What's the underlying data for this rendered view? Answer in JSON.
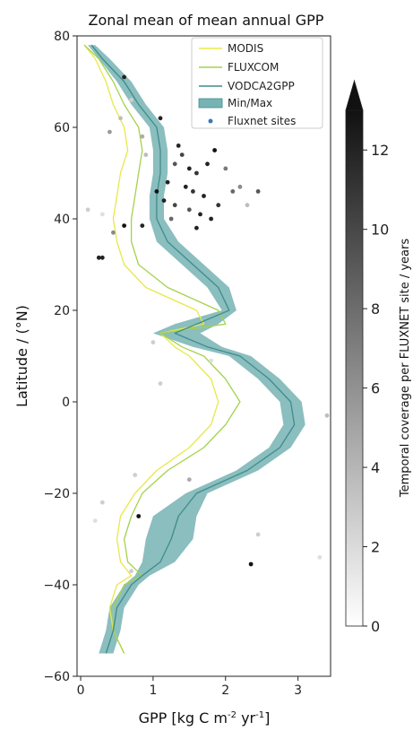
{
  "chart_data": {
    "type": "line",
    "title": "Zonal mean of mean annual GPP",
    "xlabel": "GPP [kg C m",
    "xlabel_sup1": "-2",
    "xlabel_mid": " yr",
    "xlabel_sup2": "-1",
    "xlabel_end": "]",
    "ylabel": "Latitude / (°N)",
    "xlim": [
      -0.05,
      3.45
    ],
    "ylim": [
      -60,
      80
    ],
    "xticks": [
      "0",
      "1",
      "2",
      "3"
    ],
    "yticks": [
      "80",
      "60",
      "40",
      "20",
      "0",
      "−20",
      "−40",
      "−60"
    ],
    "legend_position": "top-right",
    "legend": [
      "MODIS",
      "FLUXCOM",
      "VODCA2GPP",
      "Min/Max",
      "Fluxnet sites"
    ],
    "colors": {
      "modis": "#e8e84a",
      "fluxcom": "#a4d24e",
      "vodca": "#3f8c8c",
      "minmax_fill": "#77b3b3",
      "fluxnet_dot": "#3a79b8"
    },
    "series": [
      {
        "name": "MODIS",
        "lat": [
          78,
          75,
          70,
          65,
          60,
          55,
          50,
          45,
          40,
          35,
          30,
          25,
          20,
          17,
          15,
          12,
          10,
          5,
          0,
          -5,
          -10,
          -15,
          -20,
          -25,
          -30,
          -35,
          -38,
          -40,
          -45,
          -50,
          -55
        ],
        "gpp": [
          0.05,
          0.2,
          0.35,
          0.45,
          0.6,
          0.65,
          0.55,
          0.5,
          0.45,
          0.5,
          0.6,
          0.9,
          1.6,
          1.7,
          1.1,
          1.3,
          1.5,
          1.8,
          1.9,
          1.8,
          1.5,
          1.05,
          0.75,
          0.55,
          0.5,
          0.55,
          0.7,
          0.5,
          0.4,
          0.45,
          0.6
        ]
      },
      {
        "name": "FLUXCOM",
        "lat": [
          78,
          75,
          70,
          65,
          60,
          55,
          50,
          45,
          40,
          35,
          30,
          25,
          20,
          17,
          15,
          12,
          10,
          5,
          0,
          -5,
          -10,
          -15,
          -20,
          -25,
          -30,
          -35,
          -38,
          -40,
          -45,
          -50,
          -55
        ],
        "gpp": [
          0.05,
          0.25,
          0.45,
          0.6,
          0.8,
          0.85,
          0.8,
          0.75,
          0.7,
          0.7,
          0.8,
          1.2,
          1.9,
          2.0,
          1.1,
          1.4,
          1.7,
          2.0,
          2.2,
          2.0,
          1.7,
          1.2,
          0.85,
          0.7,
          0.6,
          0.65,
          0.85,
          0.6,
          0.45,
          0.45,
          0.6
        ]
      },
      {
        "name": "VODCA2GPP",
        "lat": [
          78,
          75,
          70,
          65,
          60,
          55,
          50,
          45,
          40,
          35,
          30,
          25,
          20,
          17,
          15,
          12,
          10,
          5,
          0,
          -5,
          -10,
          -15,
          -20,
          -25,
          -30,
          -35,
          -38,
          -40,
          -45,
          -50,
          -55
        ],
        "gpp": [
          0.15,
          0.3,
          0.6,
          0.8,
          1.05,
          1.1,
          1.1,
          1.05,
          1.05,
          1.2,
          1.55,
          1.9,
          2.05,
          1.6,
          1.3,
          1.75,
          2.2,
          2.6,
          2.9,
          2.95,
          2.75,
          2.3,
          1.6,
          1.35,
          1.25,
          1.1,
          0.85,
          0.7,
          0.5,
          0.45,
          0.35
        ]
      }
    ],
    "minmax": {
      "lat": [
        78,
        75,
        70,
        65,
        60,
        55,
        50,
        45,
        40,
        35,
        30,
        25,
        20,
        17,
        15,
        12,
        10,
        5,
        0,
        -5,
        -10,
        -15,
        -20,
        -25,
        -30,
        -35,
        -38,
        -40,
        -45,
        -50,
        -55
      ],
      "min": [
        0.1,
        0.25,
        0.5,
        0.7,
        0.95,
        1.0,
        1.0,
        0.95,
        0.95,
        1.05,
        1.4,
        1.75,
        1.95,
        1.3,
        1.0,
        1.55,
        2.05,
        2.45,
        2.75,
        2.8,
        2.6,
        2.15,
        1.45,
        1.0,
        0.9,
        0.85,
        0.75,
        0.6,
        0.4,
        0.35,
        0.25
      ],
      "max": [
        0.2,
        0.4,
        0.7,
        0.9,
        1.15,
        1.2,
        1.2,
        1.15,
        1.15,
        1.35,
        1.7,
        2.05,
        2.15,
        1.9,
        1.65,
        1.95,
        2.35,
        2.75,
        3.05,
        3.1,
        2.9,
        2.45,
        1.75,
        1.6,
        1.55,
        1.3,
        0.95,
        0.8,
        0.6,
        0.55,
        0.45
      ]
    },
    "fluxnet_sites": [
      {
        "gpp": 1.1,
        "lat": 62,
        "coverage": 12
      },
      {
        "gpp": 1.35,
        "lat": 56,
        "coverage": 12
      },
      {
        "gpp": 1.4,
        "lat": 54,
        "coverage": 10
      },
      {
        "gpp": 1.3,
        "lat": 52,
        "coverage": 9
      },
      {
        "gpp": 1.5,
        "lat": 51,
        "coverage": 12
      },
      {
        "gpp": 1.6,
        "lat": 50,
        "coverage": 11
      },
      {
        "gpp": 1.75,
        "lat": 52,
        "coverage": 12
      },
      {
        "gpp": 1.85,
        "lat": 55,
        "coverage": 13
      },
      {
        "gpp": 1.2,
        "lat": 48,
        "coverage": 12
      },
      {
        "gpp": 1.45,
        "lat": 47,
        "coverage": 12
      },
      {
        "gpp": 1.55,
        "lat": 46,
        "coverage": 11
      },
      {
        "gpp": 1.7,
        "lat": 45,
        "coverage": 12
      },
      {
        "gpp": 1.05,
        "lat": 46,
        "coverage": 13
      },
      {
        "gpp": 1.15,
        "lat": 44,
        "coverage": 12
      },
      {
        "gpp": 1.3,
        "lat": 43,
        "coverage": 10
      },
      {
        "gpp": 1.5,
        "lat": 42,
        "coverage": 9
      },
      {
        "gpp": 1.65,
        "lat": 41,
        "coverage": 12
      },
      {
        "gpp": 1.8,
        "lat": 40,
        "coverage": 12
      },
      {
        "gpp": 1.9,
        "lat": 43,
        "coverage": 11
      },
      {
        "gpp": 2.1,
        "lat": 46,
        "coverage": 8
      },
      {
        "gpp": 2.2,
        "lat": 47,
        "coverage": 6
      },
      {
        "gpp": 2.0,
        "lat": 51,
        "coverage": 7
      },
      {
        "gpp": 1.6,
        "lat": 38,
        "coverage": 12
      },
      {
        "gpp": 1.25,
        "lat": 40,
        "coverage": 8
      },
      {
        "gpp": 0.85,
        "lat": 38.5,
        "coverage": 12
      },
      {
        "gpp": 0.6,
        "lat": 38.5,
        "coverage": 13
      },
      {
        "gpp": 0.45,
        "lat": 37,
        "coverage": 6
      },
      {
        "gpp": 0.25,
        "lat": 31.5,
        "coverage": 12
      },
      {
        "gpp": 0.3,
        "lat": 31.5,
        "coverage": 12
      },
      {
        "gpp": 0.1,
        "lat": 42,
        "coverage": 2
      },
      {
        "gpp": 0.3,
        "lat": 41,
        "coverage": 1
      },
      {
        "gpp": 0.4,
        "lat": 59,
        "coverage": 5
      },
      {
        "gpp": 0.55,
        "lat": 62,
        "coverage": 3
      },
      {
        "gpp": 0.6,
        "lat": 71,
        "coverage": 12
      },
      {
        "gpp": 0.7,
        "lat": 66,
        "coverage": 2
      },
      {
        "gpp": 0.85,
        "lat": 58,
        "coverage": 4
      },
      {
        "gpp": 0.9,
        "lat": 54,
        "coverage": 3
      },
      {
        "gpp": 2.45,
        "lat": 46,
        "coverage": 9
      },
      {
        "gpp": 2.3,
        "lat": 43,
        "coverage": 3
      },
      {
        "gpp": 0.8,
        "lat": -25,
        "coverage": 13
      },
      {
        "gpp": 0.7,
        "lat": -37,
        "coverage": 2
      },
      {
        "gpp": 2.35,
        "lat": -35.5,
        "coverage": 13
      },
      {
        "gpp": 0.3,
        "lat": -22,
        "coverage": 2
      },
      {
        "gpp": 1.5,
        "lat": -17,
        "coverage": 4
      },
      {
        "gpp": 0.75,
        "lat": -16,
        "coverage": 2
      },
      {
        "gpp": 1.0,
        "lat": 13,
        "coverage": 2
      },
      {
        "gpp": 1.1,
        "lat": 4,
        "coverage": 2
      },
      {
        "gpp": 2.45,
        "lat": -29,
        "coverage": 2
      },
      {
        "gpp": 3.4,
        "lat": -3,
        "coverage": 3
      },
      {
        "gpp": 3.3,
        "lat": -34,
        "coverage": 1
      },
      {
        "gpp": 1.8,
        "lat": 9,
        "coverage": 1
      },
      {
        "gpp": 0.2,
        "lat": -26,
        "coverage": 1
      }
    ],
    "colorbar": {
      "label": "Temporal coverage per FLUXNET site / years",
      "ticks": [
        "0",
        "2",
        "4",
        "6",
        "8",
        "10",
        "12"
      ],
      "tick_values": [
        0,
        2,
        4,
        6,
        8,
        10,
        12
      ],
      "range": [
        0,
        13
      ],
      "extend": "max"
    }
  }
}
